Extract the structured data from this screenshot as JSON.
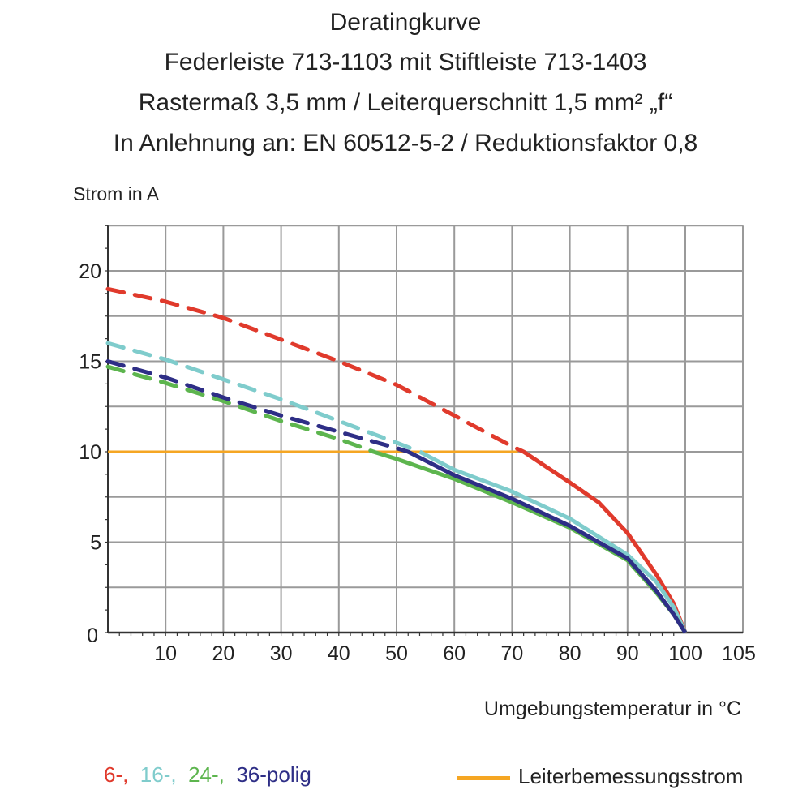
{
  "chart_data": {
    "type": "line",
    "title_lines": [
      "Deratingkurve",
      "Federleiste 713-1103 mit Stiftleiste 713-1403",
      "Rastermaß 3,5 mm / Leiterquerschnitt 1,5 mm² „f“",
      "In Anlehnung an: EN 60512-5-2 / Reduktionsfaktor 0,8"
    ],
    "ylabel": "Strom in A",
    "xlabel": "Umgebungstemperatur in °C",
    "xlim": [
      0,
      105
    ],
    "ylim": [
      0,
      22.5
    ],
    "x_ticks": [
      10,
      20,
      30,
      40,
      50,
      60,
      70,
      80,
      90,
      100,
      105
    ],
    "y_ticks": [
      0,
      5,
      10,
      15,
      20
    ],
    "origin_label": "0",
    "grid": true,
    "series": [
      {
        "name": "6-",
        "color": "#e03a2c",
        "x": [
          0,
          10,
          20,
          30,
          40,
          50,
          60,
          70,
          72,
          80,
          85,
          90,
          95,
          98,
          100
        ],
        "y": [
          19.0,
          18.3,
          17.4,
          16.2,
          15.0,
          13.7,
          12.0,
          10.3,
          10.0,
          8.3,
          7.2,
          5.5,
          3.2,
          1.6,
          0
        ]
      },
      {
        "name": "16-",
        "color": "#7fcccc",
        "x": [
          0,
          10,
          20,
          30,
          40,
          50,
          54,
          60,
          70,
          80,
          90,
          95,
          98,
          100
        ],
        "y": [
          16.0,
          15.1,
          14.0,
          12.9,
          11.7,
          10.5,
          10.0,
          9.0,
          7.8,
          6.3,
          4.3,
          2.8,
          1.4,
          0
        ]
      },
      {
        "name": "24-",
        "color": "#5db54e",
        "x": [
          0,
          10,
          20,
          30,
          40,
          46,
          50,
          60,
          70,
          80,
          90,
          95,
          98,
          100
        ],
        "y": [
          14.7,
          13.8,
          12.8,
          11.7,
          10.7,
          10.0,
          9.6,
          8.5,
          7.2,
          5.8,
          4.0,
          2.2,
          1.0,
          0
        ]
      },
      {
        "name": "36-polig",
        "color": "#2e2e86",
        "x": [
          0,
          10,
          20,
          30,
          40,
          50,
          52,
          60,
          70,
          80,
          90,
          95,
          98,
          100
        ],
        "y": [
          15.0,
          14.1,
          13.0,
          12.0,
          11.1,
          10.2,
          10.0,
          8.7,
          7.4,
          5.9,
          4.1,
          2.3,
          1.0,
          0
        ]
      }
    ],
    "reference_line": {
      "name": "Leiterbemessungsstrom",
      "color": "#f5a623",
      "y": 10,
      "x": [
        0,
        71
      ]
    },
    "line_style_note_threshold": 10,
    "legend": {
      "placement": "bottom",
      "entries": [
        "6-,",
        "16-,",
        "24-,",
        "36-polig"
      ],
      "reference_entry": "Leiterbemessungsstrom"
    }
  }
}
